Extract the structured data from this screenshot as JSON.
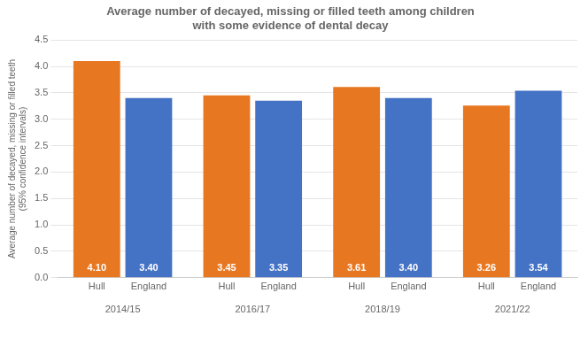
{
  "chart_data": {
    "type": "bar",
    "title": "Average number of decayed, missing or filled teeth among children\nwith some evidence of dental decay",
    "ylabel": "Average number of decayed, missing or filled teeth\n(95% confidence intervals)",
    "categories": [
      "2014/15",
      "2016/17",
      "2018/19",
      "2021/22"
    ],
    "series": [
      {
        "name": "Hull",
        "color": "#E87722",
        "values": [
          4.1,
          3.45,
          3.61,
          3.26
        ],
        "value_labels": [
          "4.10",
          "3.45",
          "3.61",
          "3.26"
        ]
      },
      {
        "name": "England",
        "color": "#4472C4",
        "values": [
          3.4,
          3.35,
          3.4,
          3.54
        ],
        "value_labels": [
          "3.40",
          "3.35",
          "3.40",
          "3.54"
        ]
      }
    ],
    "ylim": [
      0,
      4.5
    ],
    "yticks": [
      {
        "value": 0,
        "label": "0.0"
      },
      0.5,
      {
        "value": 1,
        "label": "1.0"
      },
      1.5,
      {
        "value": 2,
        "label": "2.0"
      },
      2.5,
      {
        "value": 3,
        "label": "3.0"
      },
      3.5,
      {
        "value": 4,
        "label": "4.0"
      },
      4.5
    ],
    "grid": true,
    "data_labels": true
  }
}
